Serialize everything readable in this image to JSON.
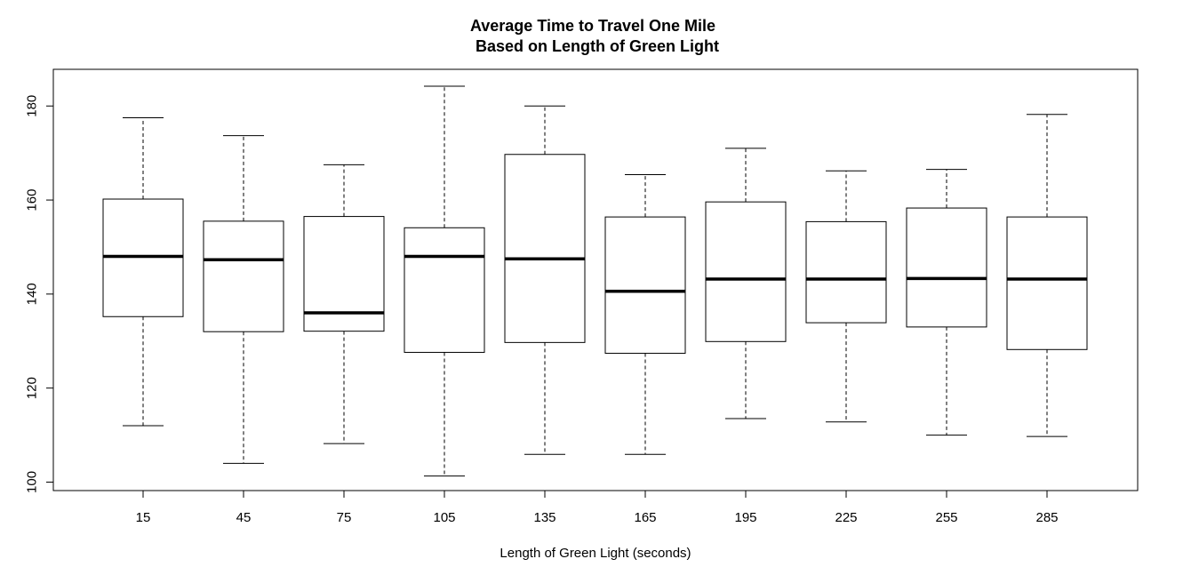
{
  "chart_data": {
    "type": "boxplot",
    "title_line1": "Average Time to Travel One Mile",
    "title_line2": "Based on Length of Green Light",
    "xlabel": "Length of Green Light (seconds)",
    "ylabel": "",
    "categories": [
      "15",
      "45",
      "75",
      "105",
      "135",
      "165",
      "195",
      "225",
      "255",
      "285"
    ],
    "boxes": [
      {
        "min": 112.0,
        "q1": 135.2,
        "median": 148.0,
        "q3": 160.2,
        "max": 177.5
      },
      {
        "min": 104.0,
        "q1": 132.0,
        "median": 147.3,
        "q3": 155.5,
        "max": 173.7
      },
      {
        "min": 108.2,
        "q1": 132.1,
        "median": 136.0,
        "q3": 156.5,
        "max": 167.5
      },
      {
        "min": 101.3,
        "q1": 127.6,
        "median": 148.0,
        "q3": 154.1,
        "max": 184.2
      },
      {
        "min": 105.9,
        "q1": 129.7,
        "median": 147.5,
        "q3": 169.7,
        "max": 180.0
      },
      {
        "min": 105.9,
        "q1": 127.4,
        "median": 140.6,
        "q3": 156.4,
        "max": 165.4
      },
      {
        "min": 113.5,
        "q1": 129.9,
        "median": 143.2,
        "q3": 159.6,
        "max": 171.0
      },
      {
        "min": 112.8,
        "q1": 133.9,
        "median": 143.2,
        "q3": 155.4,
        "max": 166.2
      },
      {
        "min": 110.0,
        "q1": 133.0,
        "median": 143.3,
        "q3": 158.3,
        "max": 166.5
      },
      {
        "min": 109.7,
        "q1": 128.2,
        "median": 143.2,
        "q3": 156.4,
        "max": 178.2
      }
    ],
    "y_ticks": [
      "100",
      "120",
      "140",
      "160",
      "180"
    ],
    "ylim": [
      98.2,
      187.8
    ],
    "grid": false,
    "legend": "none",
    "colors": {
      "box_fill": "#ffffff",
      "stroke": "#000000"
    }
  }
}
